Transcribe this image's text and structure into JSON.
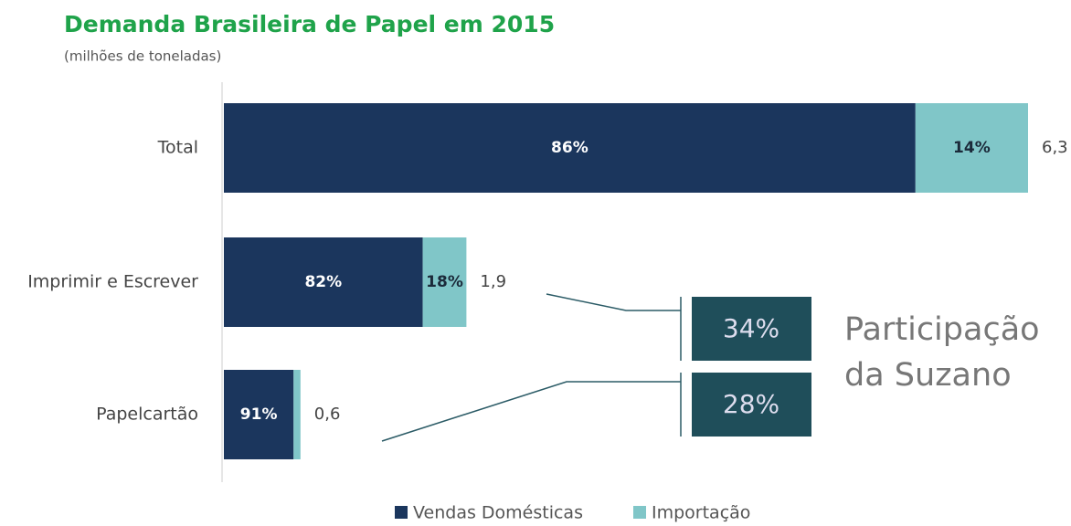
{
  "chart_data": {
    "type": "bar",
    "orientation": "horizontal",
    "stacked": "percent",
    "title": "Demanda Brasileira de Papel em 2015",
    "subtitle": "(milhões de toneladas)",
    "categories": [
      "Total",
      "Imprimir e Escrever",
      "Papelcartão"
    ],
    "series": [
      {
        "name": "Vendas Domésticas",
        "color": "#1b365d",
        "values": [
          86,
          82,
          91
        ],
        "value_labels": [
          "86%",
          "82%",
          "91%"
        ]
      },
      {
        "name": "Importação",
        "color": "#80c6c8",
        "values": [
          14,
          18,
          9
        ],
        "value_labels": [
          "14%",
          "18%",
          null
        ]
      }
    ],
    "totals": {
      "values": [
        6.3,
        1.9,
        0.6
      ],
      "value_labels": [
        "6,3",
        "1,9",
        "0,6"
      ]
    },
    "annotations": {
      "boxes": [
        {
          "category": 1,
          "value": 34,
          "label": "34%"
        },
        {
          "category": 2,
          "value": 28,
          "label": "28%"
        }
      ],
      "callout_lines": [
        "Participação",
        "da Suzano"
      ],
      "box_color": "#1f4e5a"
    },
    "legend": "bottom"
  }
}
